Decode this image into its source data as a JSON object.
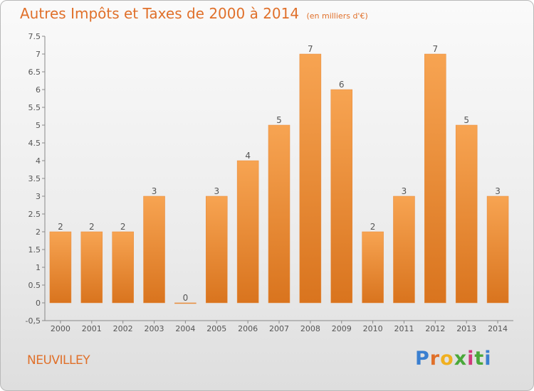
{
  "header": {
    "title": "Autres Impôts et Taxes de 2000 à 2014",
    "unit": "(en milliers d'€)"
  },
  "footer": {
    "town": "NEUVILLEY",
    "logo": "Proxiti"
  },
  "colors": {
    "bar_top": "#f7a452",
    "bar_bottom": "#d9741e",
    "accent": "#e0702a",
    "text": "#555555"
  },
  "chart_data": {
    "type": "bar",
    "title": "Autres Impôts et Taxes de 2000 à 2014",
    "xlabel": "",
    "ylabel": "",
    "categories": [
      "2000",
      "2001",
      "2002",
      "2003",
      "2004",
      "2005",
      "2006",
      "2007",
      "2008",
      "2009",
      "2010",
      "2011",
      "2012",
      "2013",
      "2014"
    ],
    "values": [
      2,
      2,
      2,
      3,
      0,
      3,
      4,
      5,
      7,
      6,
      2,
      3,
      7,
      5,
      3
    ],
    "ylim": [
      -0.5,
      7.5
    ],
    "yticks": [
      "-0,5",
      "0",
      "0.5",
      "1",
      "1.5",
      "2",
      "2.5",
      "3",
      "3.5",
      "4",
      "4.5",
      "5",
      "5.5",
      "6",
      "6.5",
      "7",
      "7.5"
    ],
    "grid": false,
    "legend": "none"
  }
}
